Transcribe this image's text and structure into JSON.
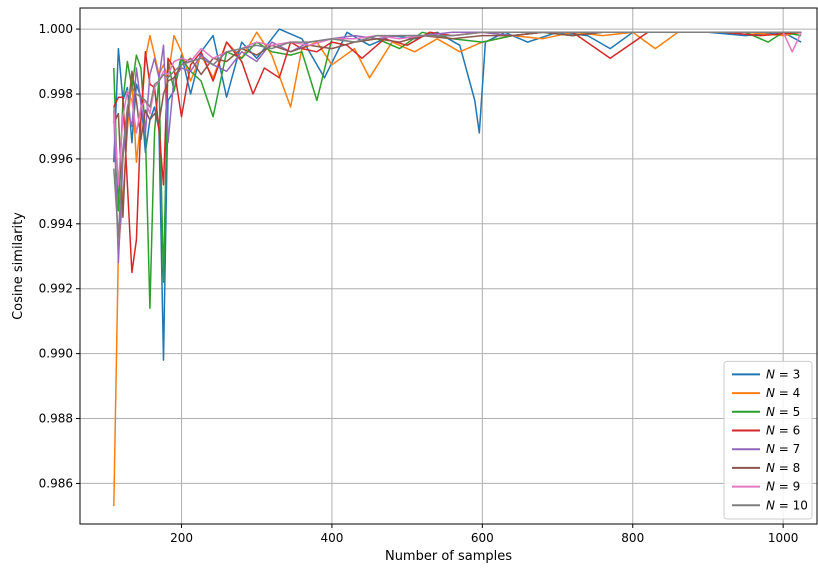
{
  "chart_data": {
    "type": "line",
    "xlabel": "Number of samples",
    "ylabel": "Cosine similarity",
    "xlim": [
      65,
      1045
    ],
    "ylim": [
      0.98475,
      1.00065
    ],
    "xticks": [
      200,
      400,
      600,
      800,
      1000
    ],
    "yticks": [
      0.986,
      0.988,
      0.99,
      0.992,
      0.994,
      0.996,
      0.998,
      1.0
    ],
    "xtick_labels": [
      "200",
      "400",
      "600",
      "800",
      "1000"
    ],
    "ytick_labels": [
      "0.986",
      "0.988",
      "0.990",
      "0.992",
      "0.994",
      "0.996",
      "0.998",
      "1.000"
    ],
    "grid": true,
    "legend_position": "lower-right",
    "series": [
      {
        "name": "N = 3",
        "legend_n": "3",
        "color": "#1f77b4",
        "x": [
          110,
          116,
          122,
          128,
          134,
          140,
          146,
          152,
          158,
          164,
          170,
          176,
          182,
          190,
          200,
          212,
          226,
          242,
          260,
          280,
          300,
          330,
          360,
          390,
          420,
          450,
          480,
          510,
          540,
          570,
          590,
          596,
          604,
          630,
          660,
          700,
          740,
          770,
          800,
          850,
          900,
          950,
          1000,
          1024
        ],
        "y": [
          0.9959,
          0.9994,
          0.9978,
          0.9982,
          0.9965,
          0.9983,
          0.9979,
          0.9962,
          0.9972,
          0.9976,
          0.9969,
          0.9898,
          0.9978,
          0.9981,
          0.9992,
          0.998,
          0.9993,
          0.9998,
          0.9979,
          0.9996,
          0.9991,
          1.0,
          0.9997,
          0.9985,
          0.9999,
          0.9995,
          0.9998,
          0.9997,
          0.9999,
          0.9995,
          0.9978,
          0.9968,
          0.9996,
          0.9999,
          0.9996,
          0.9999,
          0.9998,
          0.9994,
          0.9999,
          0.9999,
          0.9999,
          0.9998,
          0.9999,
          0.9996
        ]
      },
      {
        "name": "N = 4",
        "legend_n": "4",
        "color": "#ff7f0e",
        "x": [
          110,
          116,
          122,
          128,
          134,
          140,
          146,
          152,
          158,
          164,
          170,
          176,
          182,
          190,
          200,
          212,
          226,
          242,
          260,
          280,
          300,
          320,
          345,
          360,
          380,
          400,
          430,
          450,
          480,
          510,
          540,
          570,
          600,
          640,
          680,
          720,
          760,
          800,
          830,
          860,
          900,
          950,
          1000,
          1024
        ],
        "y": [
          0.9853,
          0.9932,
          0.9948,
          0.9969,
          0.9985,
          0.9959,
          0.9972,
          0.9991,
          0.9998,
          0.9992,
          0.9986,
          0.9989,
          0.9985,
          0.9998,
          0.9993,
          0.9984,
          0.9992,
          0.9985,
          0.9996,
          0.9991,
          0.9999,
          0.9992,
          0.9976,
          0.9994,
          0.9996,
          0.9989,
          0.9994,
          0.9985,
          0.9996,
          0.9993,
          0.9997,
          0.9993,
          0.9996,
          0.9998,
          0.9997,
          0.9999,
          0.9998,
          0.9999,
          0.9994,
          0.9999,
          0.9999,
          0.9999,
          0.9998,
          0.9999
        ]
      },
      {
        "name": "N = 5",
        "legend_n": "5",
        "color": "#2ca02c",
        "x": [
          110,
          116,
          122,
          128,
          134,
          140,
          146,
          152,
          158,
          164,
          170,
          176,
          182,
          190,
          200,
          212,
          226,
          242,
          260,
          280,
          300,
          320,
          345,
          360,
          380,
          400,
          430,
          460,
          490,
          520,
          560,
          600,
          640,
          680,
          720,
          760,
          800,
          850,
          900,
          950,
          980,
          1000,
          1024
        ],
        "y": [
          0.9988,
          0.9944,
          0.9978,
          0.999,
          0.9982,
          0.9992,
          0.9988,
          0.9968,
          0.9914,
          0.9968,
          0.9985,
          0.9922,
          0.999,
          0.9981,
          0.9991,
          0.9987,
          0.9984,
          0.9973,
          0.9993,
          0.9991,
          0.9996,
          0.9993,
          0.9992,
          0.9993,
          0.9978,
          0.9997,
          0.9996,
          0.9997,
          0.9994,
          0.9999,
          0.9997,
          0.9996,
          0.9998,
          0.9999,
          0.9998,
          0.9999,
          0.9999,
          0.9999,
          0.9999,
          0.9999,
          0.9996,
          0.9999,
          0.9998
        ]
      },
      {
        "name": "N = 6",
        "legend_n": "6",
        "color": "#d62728",
        "x": [
          110,
          116,
          122,
          128,
          134,
          140,
          146,
          152,
          158,
          164,
          170,
          176,
          182,
          190,
          200,
          212,
          226,
          242,
          260,
          280,
          295,
          310,
          330,
          345,
          360,
          380,
          400,
          420,
          440,
          470,
          500,
          530,
          560,
          600,
          640,
          680,
          720,
          770,
          820,
          870,
          920,
          970,
          1024
        ],
        "y": [
          0.9976,
          0.9979,
          0.9979,
          0.9952,
          0.9925,
          0.9935,
          0.9972,
          0.9993,
          0.9983,
          0.9982,
          0.9969,
          0.9952,
          0.9991,
          0.9988,
          0.9973,
          0.9989,
          0.9993,
          0.9984,
          0.9996,
          0.999,
          0.998,
          0.9988,
          0.9985,
          0.9996,
          0.9994,
          0.9993,
          0.9996,
          0.9995,
          0.9991,
          0.9997,
          0.9995,
          0.9999,
          0.9998,
          0.9999,
          0.9998,
          0.9999,
          0.9999,
          0.9991,
          0.9999,
          0.9999,
          0.9999,
          0.9998,
          0.9999
        ]
      },
      {
        "name": "N = 7",
        "legend_n": "7",
        "color": "#9467bd",
        "x": [
          110,
          116,
          122,
          128,
          134,
          140,
          146,
          152,
          158,
          164,
          170,
          176,
          182,
          190,
          200,
          212,
          226,
          242,
          260,
          280,
          300,
          320,
          345,
          370,
          400,
          430,
          460,
          490,
          520,
          560,
          600,
          640,
          680,
          720,
          760,
          800,
          850,
          900,
          950,
          1000,
          1024
        ],
        "y": [
          0.9975,
          0.9928,
          0.996,
          0.9975,
          0.997,
          0.9988,
          0.9977,
          0.9968,
          0.9986,
          0.9991,
          0.9985,
          0.9995,
          0.9965,
          0.9985,
          0.9988,
          0.9987,
          0.9992,
          0.9989,
          0.9987,
          0.9993,
          0.999,
          0.9996,
          0.9993,
          0.9996,
          0.9997,
          0.9998,
          0.9997,
          0.9998,
          0.9998,
          0.9999,
          0.9999,
          0.9998,
          0.9999,
          0.9999,
          0.9999,
          0.9999,
          0.9999,
          0.9999,
          0.9999,
          0.9999,
          0.9999
        ]
      },
      {
        "name": "N = 8",
        "legend_n": "8",
        "color": "#8c564b",
        "x": [
          110,
          116,
          122,
          128,
          134,
          140,
          146,
          152,
          158,
          164,
          170,
          176,
          182,
          190,
          200,
          212,
          226,
          242,
          260,
          280,
          300,
          320,
          345,
          370,
          400,
          430,
          460,
          490,
          520,
          560,
          600,
          640,
          680,
          720,
          760,
          800,
          850,
          900,
          950,
          1000,
          1024
        ],
        "y": [
          0.9971,
          0.9974,
          0.9942,
          0.9973,
          0.9987,
          0.9978,
          0.9966,
          0.9975,
          0.9972,
          0.9974,
          0.9971,
          0.998,
          0.9984,
          0.9985,
          0.9989,
          0.9991,
          0.9986,
          0.9991,
          0.999,
          0.9994,
          0.9992,
          0.9995,
          0.9993,
          0.9995,
          0.9994,
          0.9996,
          0.9997,
          0.9996,
          0.9998,
          0.9997,
          0.9998,
          0.9998,
          0.9999,
          0.9998,
          0.9999,
          0.9999,
          0.9999,
          0.9999,
          0.9999,
          0.9999,
          0.9999
        ]
      },
      {
        "name": "N = 9",
        "legend_n": "9",
        "color": "#e377c2",
        "x": [
          110,
          116,
          122,
          128,
          134,
          140,
          146,
          152,
          158,
          164,
          170,
          176,
          182,
          190,
          200,
          212,
          226,
          242,
          260,
          280,
          300,
          320,
          345,
          370,
          400,
          430,
          460,
          490,
          520,
          560,
          600,
          640,
          680,
          720,
          760,
          800,
          850,
          900,
          950,
          1000,
          1012,
          1024
        ],
        "y": [
          0.9976,
          0.9952,
          0.9973,
          0.9981,
          0.9978,
          0.9968,
          0.9976,
          0.9978,
          0.9974,
          0.9982,
          0.9984,
          0.9987,
          0.9986,
          0.999,
          0.9991,
          0.999,
          0.9994,
          0.9991,
          0.9993,
          0.9994,
          0.9996,
          0.9995,
          0.9996,
          0.9995,
          0.9997,
          0.9997,
          0.9998,
          0.9997,
          0.9998,
          0.9998,
          0.9999,
          0.9999,
          0.9999,
          0.9999,
          0.9999,
          0.9999,
          0.9999,
          0.9999,
          0.9999,
          0.9999,
          0.9993,
          0.9999
        ]
      },
      {
        "name": "N = 10",
        "legend_n": "10",
        "color": "#7f7f7f",
        "x": [
          110,
          116,
          122,
          128,
          134,
          140,
          146,
          152,
          158,
          164,
          170,
          176,
          182,
          190,
          200,
          212,
          226,
          242,
          260,
          280,
          300,
          320,
          345,
          370,
          400,
          430,
          460,
          490,
          520,
          560,
          600,
          640,
          680,
          720,
          760,
          800,
          850,
          900,
          950,
          1000,
          1024
        ],
        "y": [
          0.9957,
          0.9936,
          0.9963,
          0.9976,
          0.9982,
          0.998,
          0.9979,
          0.9978,
          0.9976,
          0.9983,
          0.9984,
          0.9986,
          0.9985,
          0.9987,
          0.9989,
          0.999,
          0.9991,
          0.9989,
          0.9993,
          0.9994,
          0.9995,
          0.9994,
          0.9996,
          0.9996,
          0.9997,
          0.9996,
          0.9998,
          0.9998,
          0.9998,
          0.9998,
          0.9999,
          0.9999,
          0.9999,
          0.9999,
          0.9999,
          0.9999,
          0.9999,
          0.9999,
          0.9999,
          0.9999,
          0.9999
        ]
      }
    ]
  }
}
